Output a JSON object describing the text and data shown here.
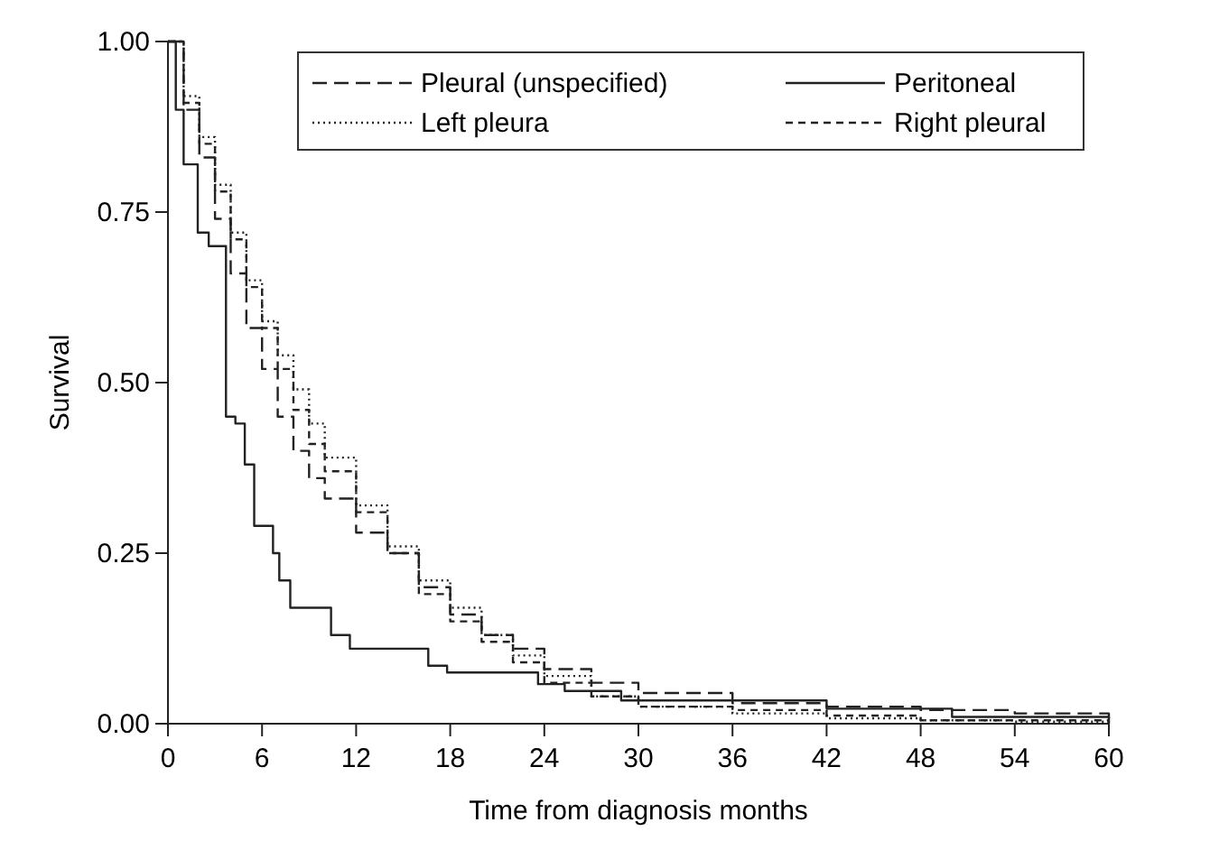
{
  "chart_data": {
    "type": "step",
    "xlabel": "Time from diagnosis months",
    "ylabel": "Survival",
    "xlim": [
      0,
      60
    ],
    "ylim": [
      0,
      1
    ],
    "xticks": [
      0,
      6,
      12,
      18,
      24,
      30,
      36,
      42,
      48,
      54,
      60
    ],
    "yticks": [
      {
        "value": 0,
        "label": "0.00"
      },
      {
        "value": 0.25,
        "label": "0.25"
      },
      {
        "value": 0.5,
        "label": "0.50"
      },
      {
        "value": 0.75,
        "label": "0.75"
      },
      {
        "value": 1,
        "label": "1.00"
      }
    ],
    "grid": false,
    "legend": "top right",
    "series": [
      {
        "name": "Pleural (unspecified)",
        "color": "#222222",
        "line_style": "longdash",
        "x": [
          0,
          1,
          2,
          3,
          4,
          5,
          6,
          7,
          8,
          9,
          10,
          12,
          14,
          16,
          18,
          20,
          22,
          24,
          27,
          30,
          36,
          42,
          48,
          54,
          60
        ],
        "values": [
          1,
          0.9,
          0.83,
          0.74,
          0.66,
          0.58,
          0.52,
          0.45,
          0.4,
          0.36,
          0.33,
          0.28,
          0.25,
          0.2,
          0.16,
          0.13,
          0.11,
          0.08,
          0.06,
          0.045,
          0.03,
          0.025,
          0.02,
          0.015,
          0
        ]
      },
      {
        "name": "Left pleura",
        "color": "#222222",
        "line_style": "dotted",
        "x": [
          0,
          1,
          2,
          3,
          4,
          5,
          6,
          7,
          8,
          9,
          10,
          12,
          14,
          16,
          18,
          20,
          22,
          24,
          27,
          30,
          36,
          42,
          48,
          54,
          60
        ],
        "values": [
          1,
          0.92,
          0.86,
          0.79,
          0.72,
          0.65,
          0.59,
          0.54,
          0.49,
          0.44,
          0.39,
          0.32,
          0.26,
          0.21,
          0.17,
          0.13,
          0.1,
          0.07,
          0.04,
          0.025,
          0.015,
          0.008,
          0.005,
          0.003,
          0
        ]
      },
      {
        "name": "Peritoneal",
        "color": "#222222",
        "line_style": "solid",
        "x": [
          0,
          0.5,
          1,
          1.9,
          2.6,
          3.7,
          4.3,
          4.9,
          5.5,
          6.7,
          7.1,
          7.8,
          9.5,
          10.4,
          11.6,
          15.1,
          16.6,
          17.8,
          22.1,
          23.6,
          25.3,
          28.9,
          40.5,
          42,
          50,
          60
        ],
        "values": [
          1,
          0.9,
          0.82,
          0.72,
          0.7,
          0.45,
          0.44,
          0.38,
          0.29,
          0.25,
          0.21,
          0.17,
          0.17,
          0.13,
          0.11,
          0.11,
          0.085,
          0.075,
          0.075,
          0.058,
          0.048,
          0.034,
          0.034,
          0.022,
          0.01,
          0.005
        ]
      },
      {
        "name": "Right pleural",
        "color": "#222222",
        "line_style": "dashed",
        "x": [
          0,
          1,
          2,
          3,
          4,
          5,
          6,
          7,
          8,
          9,
          10,
          12,
          14,
          16,
          18,
          20,
          22,
          24,
          27,
          30,
          36,
          42,
          48,
          60
        ],
        "values": [
          1,
          0.91,
          0.85,
          0.78,
          0.71,
          0.64,
          0.58,
          0.52,
          0.46,
          0.41,
          0.37,
          0.31,
          0.25,
          0.19,
          0.15,
          0.12,
          0.09,
          0.06,
          0.04,
          0.025,
          0.02,
          0.012,
          0.005,
          0
        ]
      }
    ]
  }
}
